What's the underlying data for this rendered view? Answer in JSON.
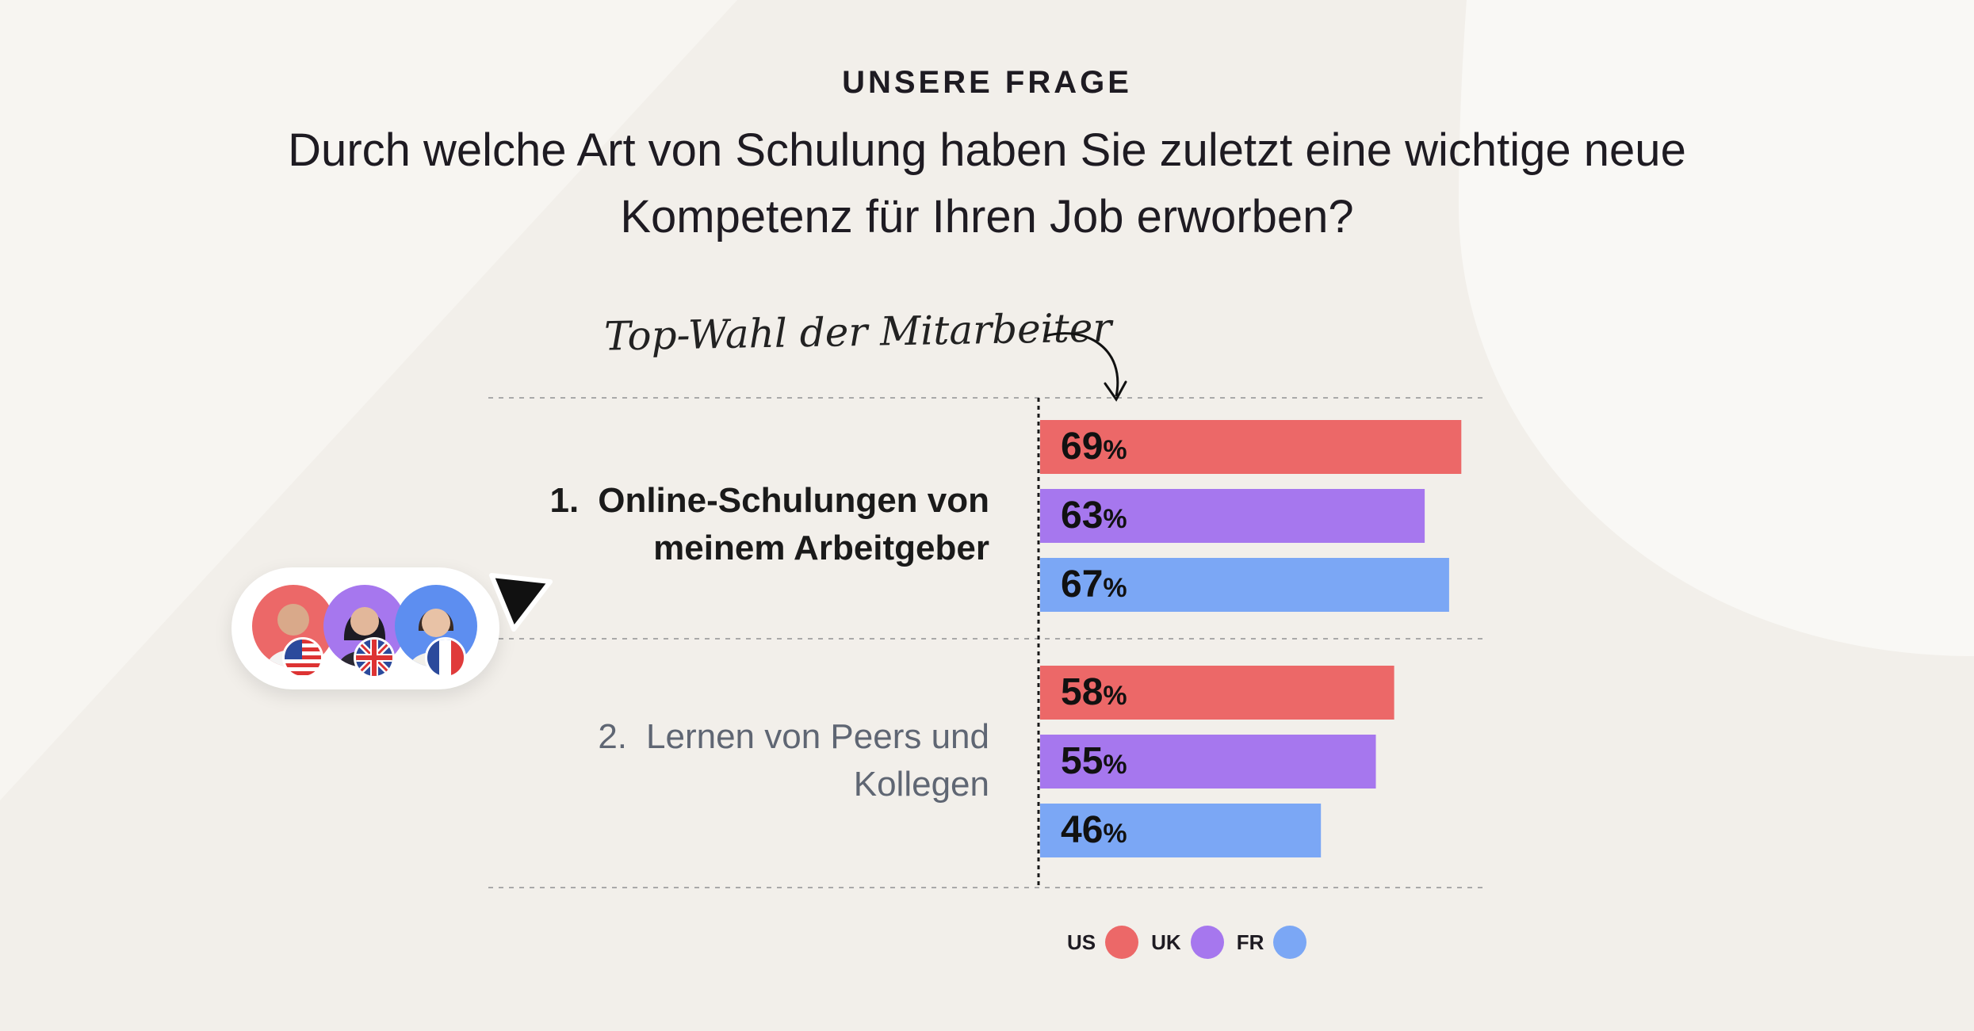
{
  "header": {
    "eyebrow": "UNSERE FRAGE",
    "question": "Durch welche Art von Schulung haben Sie zuletzt eine wichtige neue Kompetenz für Ihren Job erworben?"
  },
  "annotation": "Top-Wahl der Mitarbeiter",
  "chart_data": {
    "type": "bar",
    "orientation": "horizontal",
    "categories": [
      {
        "rank": "1.",
        "label": "Online-Schulungen von meinem Arbeitgeber"
      },
      {
        "rank": "2.",
        "label": "Lernen von Peers und Kollegen"
      }
    ],
    "series": [
      {
        "name": "US",
        "color": "#ec6868",
        "values": [
          69,
          58
        ]
      },
      {
        "name": "UK",
        "color": "#a677ee",
        "values": [
          63,
          55
        ]
      },
      {
        "name": "FR",
        "color": "#7ba7f5",
        "values": [
          67,
          46
        ]
      }
    ],
    "value_suffix": "%",
    "xlim": [
      0,
      100
    ],
    "grid": false,
    "legend_position": "bottom"
  },
  "avatars": [
    {
      "name": "avatar-us",
      "color": "#ec6868",
      "flag": "us-flag-icon"
    },
    {
      "name": "avatar-uk",
      "color": "#a677ee",
      "flag": "uk-flag-icon"
    },
    {
      "name": "avatar-fr",
      "color": "#5d8ef0",
      "flag": "fr-flag-icon"
    }
  ]
}
